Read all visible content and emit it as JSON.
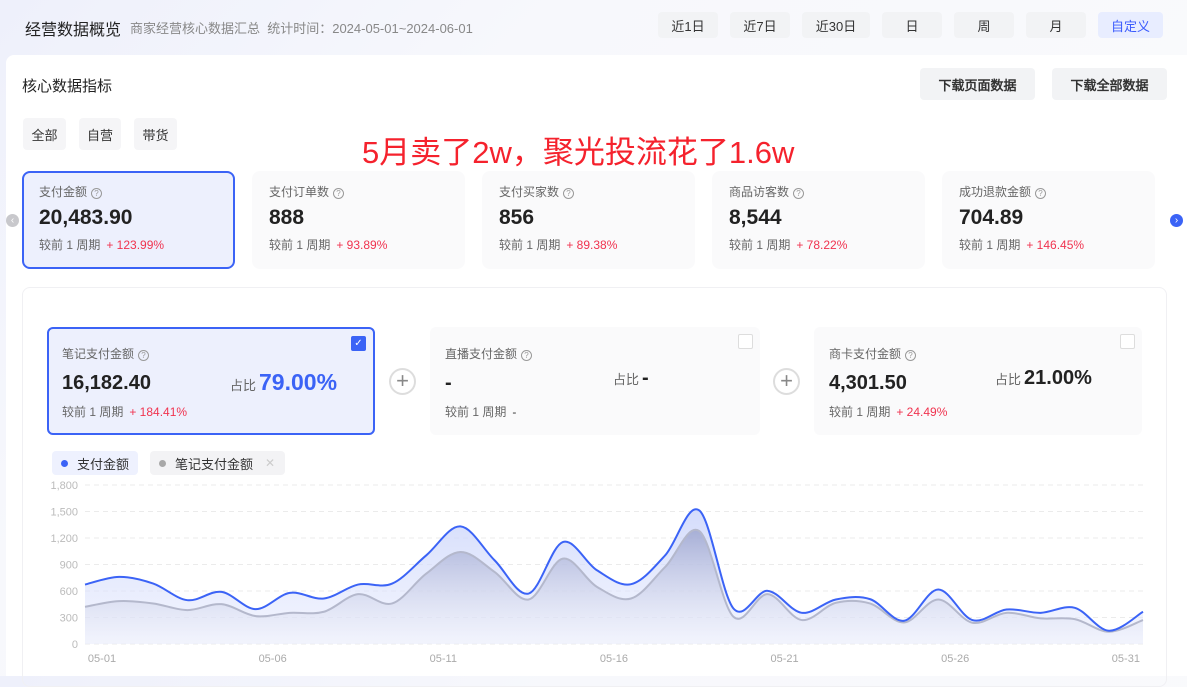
{
  "header": {
    "title": "经营数据概览",
    "subtitle": "商家经营核心数据汇总  统计时间：2024-05-01~2024-06-01"
  },
  "time_buttons": [
    {
      "label": "近1日"
    },
    {
      "label": "近7日"
    },
    {
      "label": "近30日"
    },
    {
      "label": "日"
    },
    {
      "label": "周"
    },
    {
      "label": "月"
    },
    {
      "label": "自定义",
      "active": true
    }
  ],
  "section_title": "核心数据指标",
  "download": {
    "page": "下载页面数据",
    "all": "下载全部数据"
  },
  "tabs": [
    {
      "label": "全部",
      "active": true
    },
    {
      "label": "自营"
    },
    {
      "label": "带货"
    }
  ],
  "annotation": "5月卖了2w，聚光投流花了1.6w",
  "metrics": [
    {
      "label": "支付金额",
      "value": "20,483.90",
      "compare": "较前 1 周期",
      "change": "+ 123.99%",
      "selected": true
    },
    {
      "label": "支付订单数",
      "value": "888",
      "compare": "较前 1 周期",
      "change": "+ 93.89%"
    },
    {
      "label": "支付买家数",
      "value": "856",
      "compare": "较前 1 周期",
      "change": "+ 89.38%"
    },
    {
      "label": "商品访客数",
      "value": "8,544",
      "compare": "较前 1 周期",
      "change": "+ 78.22%"
    },
    {
      "label": "成功退款金额",
      "value": "704.89",
      "compare": "较前 1 周期",
      "change": "+ 146.45%"
    }
  ],
  "sub_metrics": [
    {
      "label": "笔记支付金额",
      "value": "16,182.40",
      "ratio_label": "占比",
      "ratio": "79.00%",
      "compare": "较前 1 周期",
      "change": "+ 184.41%",
      "checked": true
    },
    {
      "label": "直播支付金额",
      "value": "-",
      "ratio_label": "占比",
      "ratio": "-",
      "compare": "较前 1 周期",
      "change": "-",
      "checked": false
    },
    {
      "label": "商卡支付金额",
      "value": "4,301.50",
      "ratio_label": "占比",
      "ratio": "21.00%",
      "compare": "较前 1 周期",
      "change": "+ 24.49%",
      "checked": false
    }
  ],
  "colors": {
    "accent": "#3b63f6",
    "up": "#f0334f",
    "secondary_series": "#a0a4b8"
  },
  "chart_data": {
    "type": "area",
    "legend": [
      {
        "name": "支付金额",
        "color": "#3b63f6"
      },
      {
        "name": "笔记支付金额",
        "color": "#a8a8a8"
      }
    ],
    "legend_placement": "top-left",
    "x": [
      "05-01",
      "05-02",
      "05-03",
      "05-04",
      "05-05",
      "05-06",
      "05-07",
      "05-08",
      "05-09",
      "05-10",
      "05-11",
      "05-12",
      "05-13",
      "05-14",
      "05-15",
      "05-16",
      "05-17",
      "05-18",
      "05-19",
      "05-20",
      "05-21",
      "05-22",
      "05-23",
      "05-24",
      "05-25",
      "05-26",
      "05-27",
      "05-28",
      "05-29",
      "05-30",
      "05-31",
      "06-01"
    ],
    "xticks": [
      "05-01",
      "05-06",
      "05-11",
      "05-16",
      "05-21",
      "05-26",
      "05-31"
    ],
    "yticks": [
      "0",
      "300",
      "600",
      "900",
      "1,200",
      "1,500",
      "1,800"
    ],
    "ylim": [
      0,
      1800
    ],
    "grid": true,
    "series": [
      {
        "name": "支付金额",
        "values": [
          673,
          760,
          684,
          496,
          590,
          395,
          579,
          515,
          673,
          684,
          1004,
          1331,
          948,
          571,
          1154,
          835,
          677,
          1004,
          1512,
          402,
          602,
          353,
          504,
          508,
          263,
          617,
          271,
          391,
          353,
          410,
          150,
          365
        ]
      },
      {
        "name": "笔记支付金额",
        "values": [
          421,
          485,
          459,
          384,
          451,
          316,
          353,
          365,
          564,
          459,
          797,
          1042,
          816,
          504,
          966,
          647,
          515,
          872,
          1278,
          308,
          564,
          271,
          466,
          459,
          244,
          504,
          241,
          353,
          290,
          282,
          139,
          271
        ]
      }
    ]
  }
}
